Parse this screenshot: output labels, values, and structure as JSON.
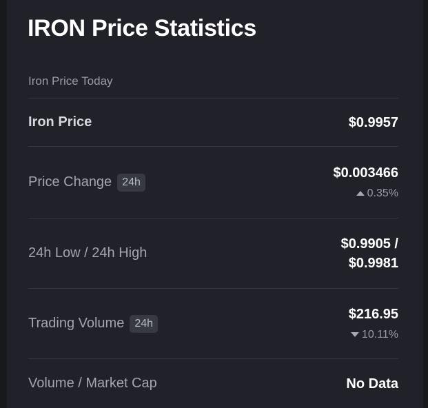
{
  "title": "IRON Price Statistics",
  "section_label": "Iron Price Today",
  "rows": {
    "iron_price": {
      "label": "Iron Price",
      "value": "$0.9957"
    },
    "price_change": {
      "label": "Price Change",
      "badge": "24h",
      "value": "$0.003466",
      "change": "0.35%",
      "direction": "up"
    },
    "low_high": {
      "label": "24h Low / 24h High",
      "value_line1": "$0.9905 /",
      "value_line2": "$0.9981"
    },
    "trading_volume": {
      "label": "Trading Volume",
      "badge": "24h",
      "value": "$216.95",
      "change": "10.11%",
      "direction": "down"
    },
    "volume_market_cap": {
      "label": "Volume / Market Cap",
      "value": "No Data"
    }
  },
  "colors": {
    "panel_bg": "#212229",
    "page_bg": "#17181c",
    "divider": "#34363e",
    "muted_text": "#9a9ca6",
    "value_text": "#ffffff"
  },
  "icons": {
    "up": "triangle-up-icon",
    "down": "triangle-down-icon"
  }
}
